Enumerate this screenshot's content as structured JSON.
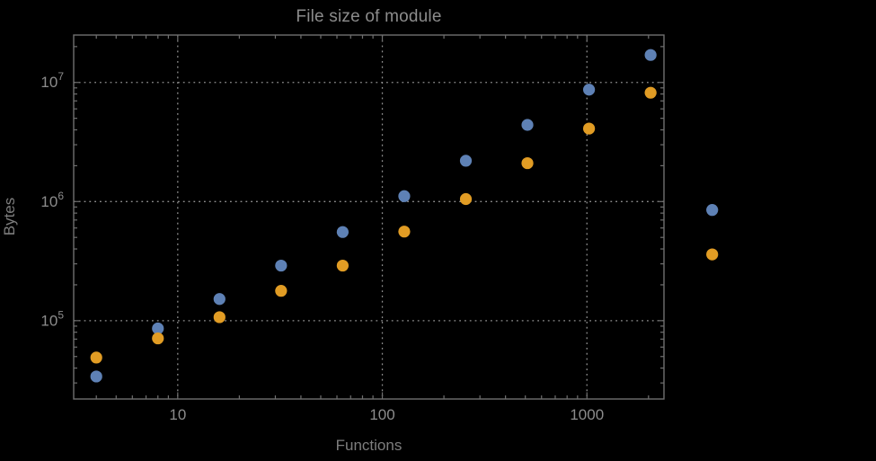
{
  "chart": {
    "title": "File size of module",
    "xlabel": "Functions",
    "ylabel": "Bytes"
  },
  "colors": {
    "background": "#000000",
    "frame": "#6f6f6f",
    "tick": "#6f6f6f",
    "grid": "#909090",
    "text": "#8c8c8c",
    "series_blue": "#5e81b5",
    "series_orange": "#e19c24"
  },
  "chart_data": {
    "type": "scatter",
    "title": "File size of module",
    "xlabel": "Functions",
    "ylabel": "Bytes",
    "x_scale": "log",
    "y_scale": "log",
    "xlim": [
      3.1,
      2380
    ],
    "ylim": [
      22000,
      25000000
    ],
    "grid": "dotted lines at decade ticks, both axes",
    "plot_range_clipping": false,
    "legend": "none (the two markers right of the frame are the x=4096 data points falling outside the x plot range)",
    "x": [
      4,
      8,
      16,
      32,
      64,
      128,
      256,
      512,
      1024,
      2048,
      4096
    ],
    "series": [
      {
        "name": "blue",
        "color": "#5e81b5",
        "values": [
          34000,
          86000,
          152000,
          290000,
          555000,
          1110000,
          2200000,
          4400000,
          8700000,
          17000000,
          850000
        ]
      },
      {
        "name": "orange",
        "color": "#e19c24",
        "values": [
          49000,
          71000,
          107000,
          178000,
          290000,
          560000,
          1050000,
          2100000,
          4100000,
          8200000,
          360000
        ]
      }
    ],
    "x_ticks": [
      {
        "value": 10,
        "label": "10"
      },
      {
        "value": 100,
        "label": "100"
      },
      {
        "value": 1000,
        "label": "1000"
      }
    ],
    "y_ticks": [
      {
        "value": 100000,
        "base": "10",
        "exponent": "5"
      },
      {
        "value": 1000000,
        "base": "10",
        "exponent": "6"
      },
      {
        "value": 10000000,
        "base": "10",
        "exponent": "7"
      }
    ]
  }
}
